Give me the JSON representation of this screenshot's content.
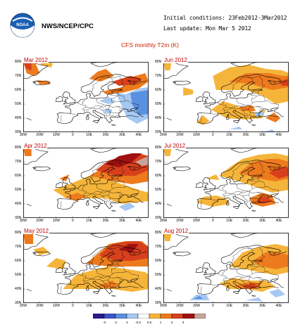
{
  "header": {
    "agency": "NWS/NCEP/CPC",
    "logo_text": "NOAA",
    "initial_conditions": "Initial conditions: 23Feb2012-3Mar2012",
    "last_update": "Last update: Mon Mar 5 2012",
    "title": "CFS monthly T2m (K)"
  },
  "axes": {
    "lat_labels": [
      "80N",
      "70N",
      "60N",
      "50N",
      "40N",
      "30N"
    ],
    "lon_labels": [
      "30W",
      "20W",
      "10W",
      "0",
      "10E",
      "20E",
      "30E",
      "40E"
    ]
  },
  "panels": [
    {
      "id": "mar",
      "title": "Mar 2012"
    },
    {
      "id": "jun",
      "title": "Jun 2012"
    },
    {
      "id": "apr",
      "title": "Apr 2012"
    },
    {
      "id": "jul",
      "title": "Jul 2012"
    },
    {
      "id": "may",
      "title": "May 2012"
    },
    {
      "id": "aug",
      "title": "Aug 2012"
    }
  ],
  "colorbar": {
    "labels": [
      "-3",
      "-2",
      "-1",
      "-0.5",
      "0.5",
      "1",
      "2",
      "3"
    ],
    "colors": [
      "#2a1a8c",
      "#3a54c8",
      "#5a90e0",
      "#a6c8f2",
      "#ffffff",
      "#f5b43a",
      "#ee7a1e",
      "#d8401c",
      "#a01010",
      "#c8a49a"
    ]
  }
}
